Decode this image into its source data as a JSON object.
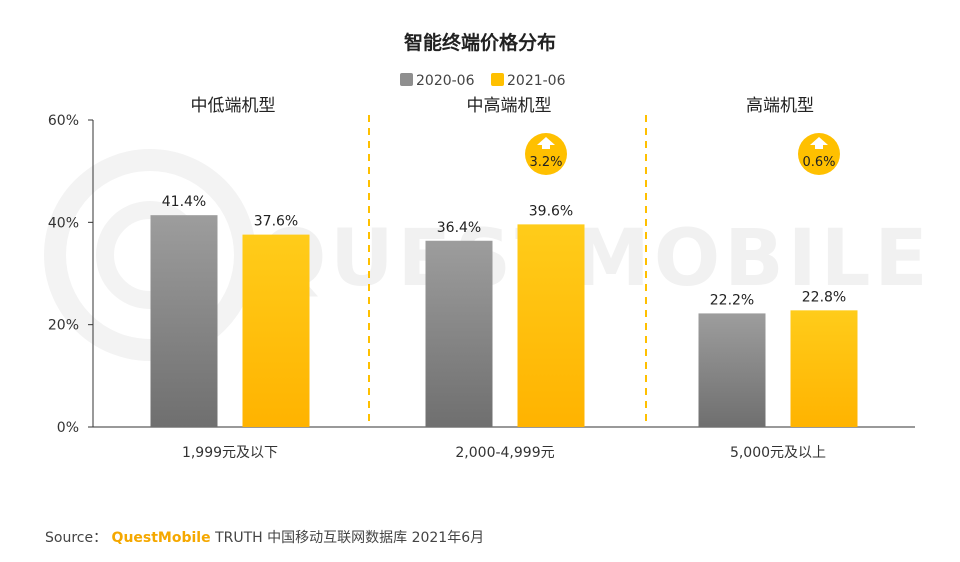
{
  "chart_data": {
    "type": "bar",
    "title": "智能终端价格分布",
    "legend": [
      "2020-06",
      "2021-06"
    ],
    "legend_position": "top-center",
    "groups": [
      "中低端机型",
      "中高端机型",
      "高端机型"
    ],
    "categories": [
      "1,999元及以下",
      "2,000-4,999元",
      "5,000元及以上"
    ],
    "series": [
      {
        "name": "2020-06",
        "values": [
          41.4,
          36.4,
          22.2
        ]
      },
      {
        "name": "2021-06",
        "values": [
          37.6,
          39.6,
          22.8
        ]
      }
    ],
    "value_labels": [
      [
        "41.4%",
        "36.4%",
        "22.2%"
      ],
      [
        "37.6%",
        "39.6%",
        "22.8%"
      ]
    ],
    "badges": [
      null,
      "3.2%",
      "0.6%"
    ],
    "ylim": [
      0,
      60
    ],
    "yticks": [
      0,
      20,
      40,
      60
    ],
    "ytick_labels": [
      "0%",
      "20%",
      "40%",
      "60%"
    ],
    "colors": {
      "series1": "#8f8f8f",
      "series2": "#ffc000",
      "badge": "#ffc000",
      "divider": "#ffc000"
    },
    "watermark": "QUESTMOBILE"
  },
  "source": {
    "prefix": "Source：",
    "brand": "QuestMobile",
    "text": "TRUTH 中国移动互联网数据库 2021年6月"
  }
}
